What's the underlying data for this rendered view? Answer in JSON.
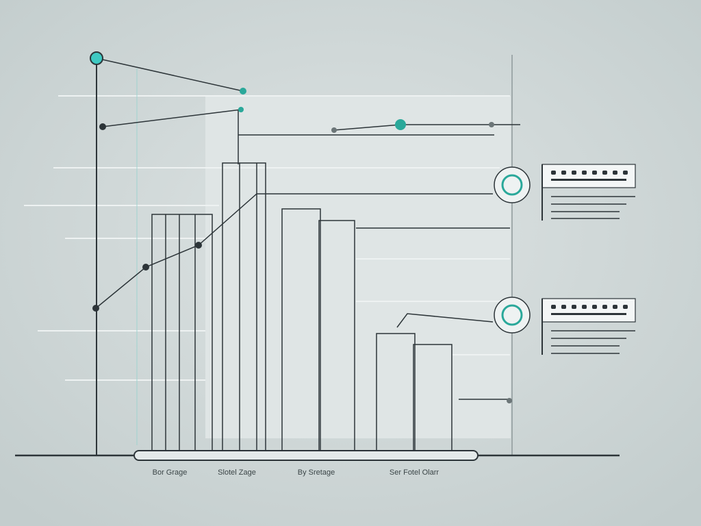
{
  "labels": [
    "Bor Grage",
    "Slotel Zage",
    "By Sretage",
    "Ser Fotel Olarr"
  ]
}
